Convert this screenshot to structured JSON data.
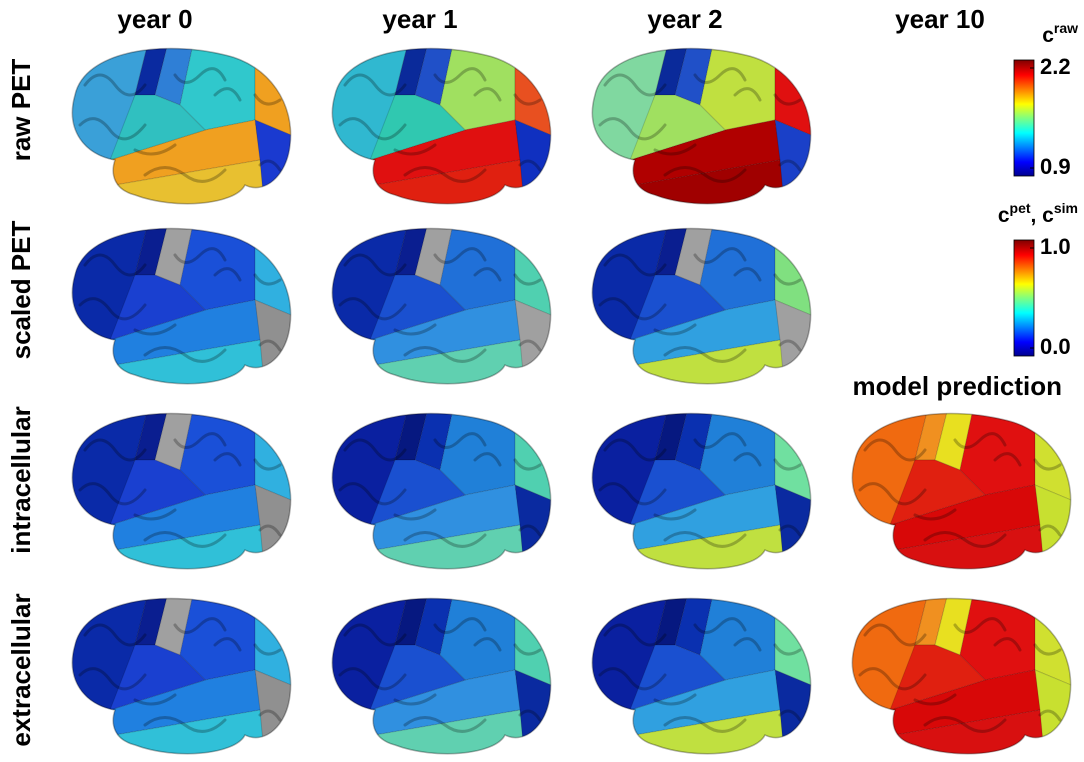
{
  "columns": [
    "year 0",
    "year 1",
    "year 2",
    "year 10"
  ],
  "rows": [
    "raw PET",
    "scaled PET",
    "intracellular",
    "extracellular"
  ],
  "model_label": "model prediction",
  "colorbars": [
    {
      "label": [
        {
          "text": "c"
        },
        {
          "sup": "raw"
        }
      ],
      "lim": [
        0.9,
        2.2
      ],
      "ticks": [
        2.2,
        0.9
      ]
    },
    {
      "label": [
        {
          "text": "c"
        },
        {
          "sup": "pet"
        },
        {
          "text": ", c"
        },
        {
          "sup": "sim"
        }
      ],
      "lim": [
        0,
        1
      ],
      "ticks": [
        {
          "value": 1,
          "label": "1.0"
        },
        {
          "value": 0,
          "label": "0.0"
        }
      ]
    }
  ]
}
